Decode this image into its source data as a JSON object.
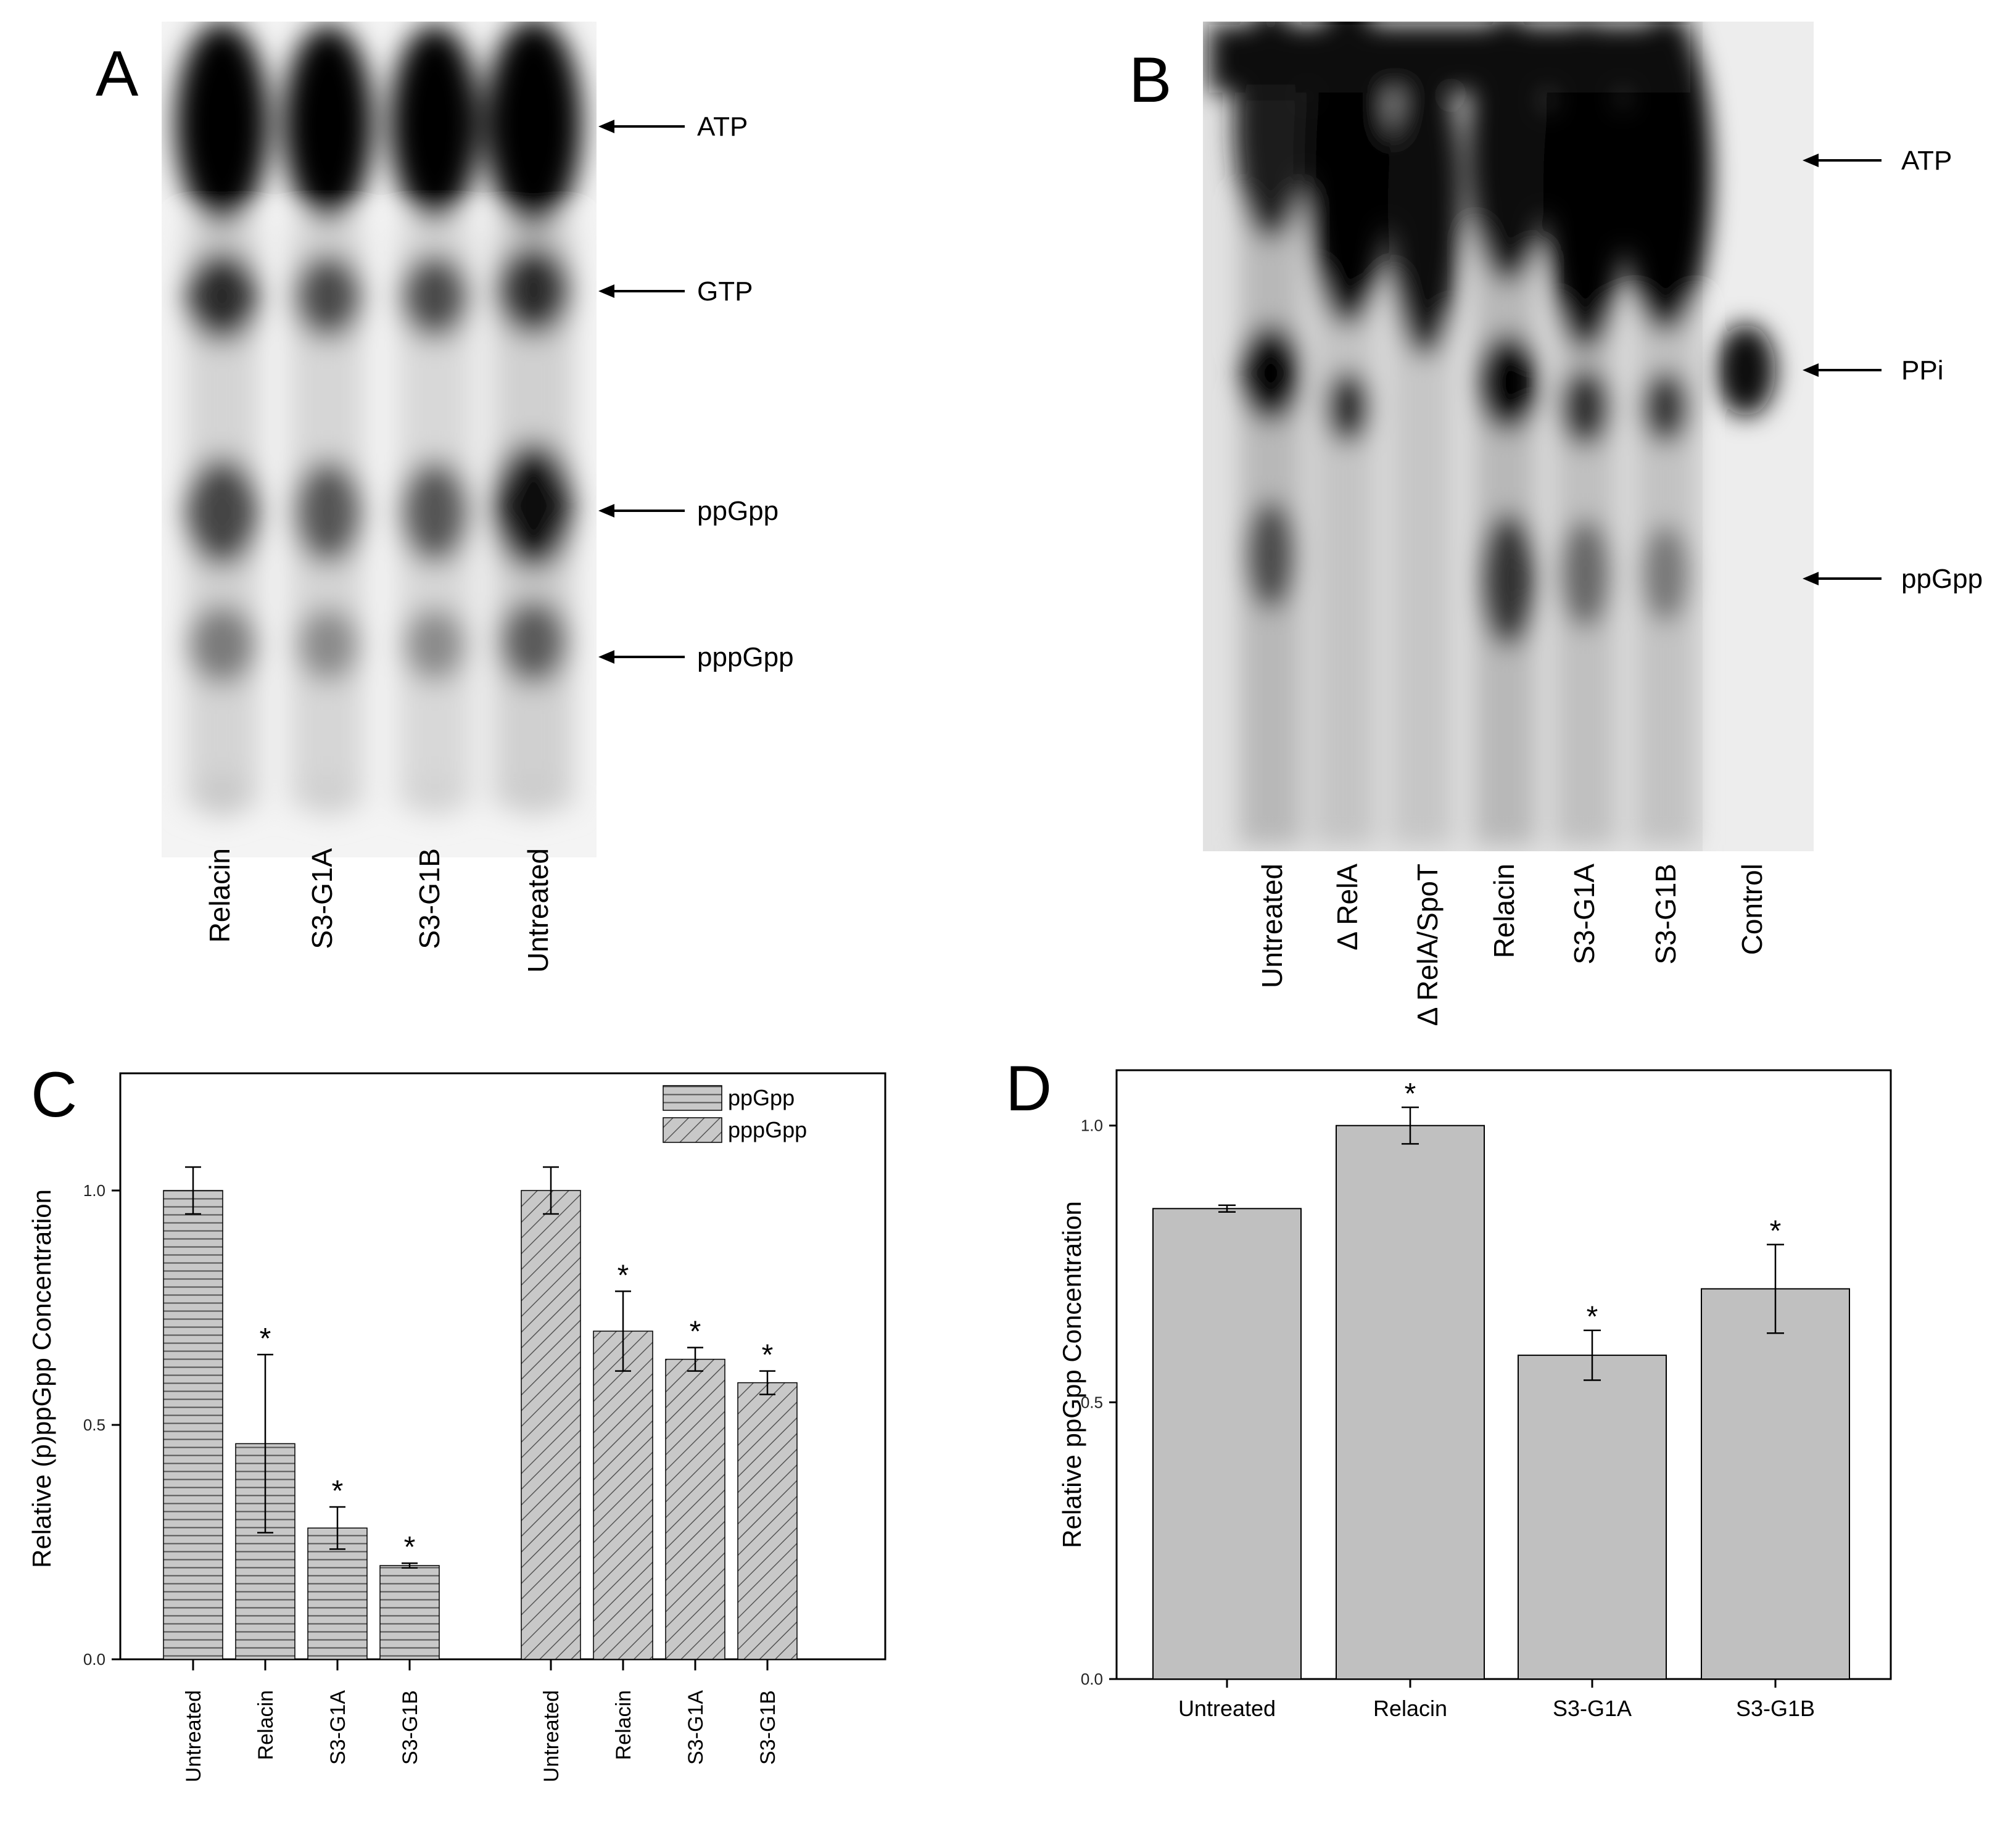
{
  "panels": {
    "A": {
      "letter": "A",
      "bands": [
        "ATP",
        "GTP",
        "ppGpp",
        "pppGpp"
      ],
      "lanes": [
        "Relacin",
        "S3-G1A",
        "S3-G1B",
        "Untreated"
      ]
    },
    "B": {
      "letter": "B",
      "bands": [
        "ATP",
        "PPi",
        "ppGpp"
      ],
      "lanes": [
        "Untreated",
        "Δ RelA",
        "Δ RelA/SpoT",
        "Relacin",
        "S3-G1A",
        "S3-G1B",
        "Control"
      ]
    },
    "C": {
      "letter": "C"
    },
    "D": {
      "letter": "D"
    }
  },
  "chart_data": [
    {
      "panel": "C",
      "type": "bar",
      "ylabel": "Relative (p)ppGpp Concentration",
      "ylim": [
        0,
        1.25
      ],
      "yticks": [
        "0.0",
        "0.5",
        "1.0"
      ],
      "grid": false,
      "legend_position": "top-right",
      "significance_marker": "*",
      "series": [
        {
          "name": "ppGpp",
          "pattern": "horizontal-lines",
          "categories": [
            "Untreated",
            "Relacin",
            "S3-G1A",
            "S3-G1B"
          ],
          "values": [
            1.0,
            0.46,
            0.28,
            0.2
          ],
          "errors": [
            0.05,
            0.19,
            0.045,
            0.005
          ],
          "significant": [
            false,
            true,
            true,
            true
          ]
        },
        {
          "name": "pppGpp",
          "pattern": "diagonal-lines",
          "categories": [
            "Untreated",
            "Relacin",
            "S3-G1A",
            "S3-G1B"
          ],
          "values": [
            1.0,
            0.7,
            0.64,
            0.59
          ],
          "errors": [
            0.05,
            0.085,
            0.025,
            0.025
          ],
          "significant": [
            false,
            true,
            true,
            true
          ]
        }
      ]
    },
    {
      "panel": "D",
      "type": "bar",
      "ylabel": "Relative ppGpp Concentration",
      "ylim": [
        0,
        1.1
      ],
      "yticks": [
        "0.0",
        "0.5",
        "1.0"
      ],
      "grid": false,
      "significance_marker": "*",
      "categories": [
        "Untreated",
        "Relacin",
        "S3-G1A",
        "S3-G1B"
      ],
      "values": [
        0.85,
        1.0,
        0.585,
        0.705
      ],
      "errors": [
        0.006,
        0.033,
        0.045,
        0.08
      ],
      "significant": [
        false,
        true,
        true,
        true
      ],
      "bar_color": "#c0c0c0"
    }
  ]
}
